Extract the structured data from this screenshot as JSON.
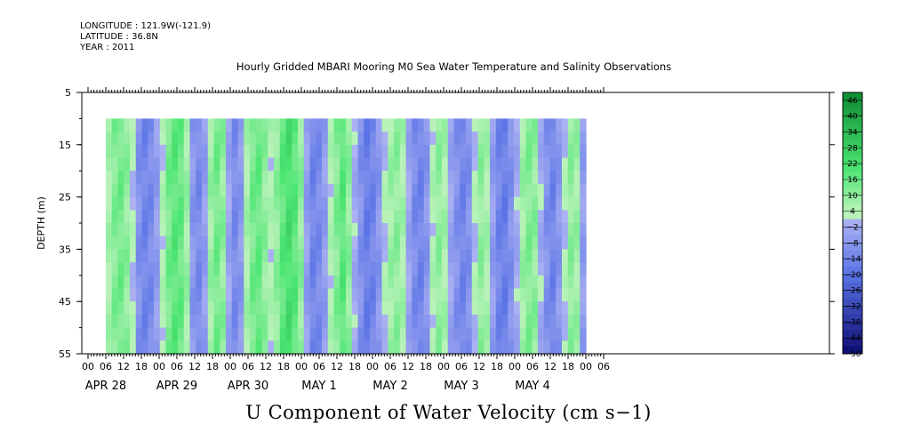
{
  "header": {
    "longitude": "LONGITUDE : 121.9W(-121.9)",
    "latitude": "LATITUDE : 36.8N",
    "year": "YEAR : 2011"
  },
  "chart_data": {
    "type": "heatmap",
    "title": "Hourly Gridded MBARI Mooring M0 Sea Water Temperature and Salinity Observations",
    "xlabel": "U Component of Water Velocity (cm s−1)",
    "ylabel": "DEPTH (m)",
    "ylim": [
      5,
      55
    ],
    "y_ticks": [
      "5",
      "15",
      "25",
      "35",
      "45",
      "55"
    ],
    "hour_ticks": [
      "00",
      "06",
      "12",
      "18"
    ],
    "date_labels": [
      "APR 28",
      "APR 29",
      "APR 30",
      "MAY  1",
      "MAY  2",
      "MAY  3",
      "MAY  4"
    ],
    "data_depth_range": [
      10,
      55
    ],
    "colorbar": {
      "tick_labels": [
        "46",
        "40",
        "34",
        "28",
        "22",
        "16",
        "10",
        "4",
        "−2",
        "−8",
        "−14",
        "−20",
        "−26",
        "−32",
        "−38",
        "−44",
        "−50"
      ],
      "range": [
        -50,
        49
      ]
    },
    "column_means_cm_s": [
      6,
      12,
      14,
      10,
      2,
      -10,
      -14,
      -12,
      -6,
      4,
      14,
      18,
      16,
      8,
      -8,
      -12,
      -6,
      8,
      14,
      10,
      -4,
      -12,
      -8,
      6,
      14,
      16,
      10,
      4,
      10,
      18,
      22,
      18,
      10,
      -6,
      -14,
      -12,
      -6,
      4,
      12,
      18,
      10,
      -2,
      -10,
      -16,
      -14,
      -8,
      2,
      8,
      10,
      6,
      -4,
      -12,
      -14,
      -8,
      4,
      10,
      6,
      -4,
      -10,
      -14,
      -10,
      2,
      10,
      6,
      -6,
      -14,
      -16,
      -10,
      -2,
      8,
      12,
      10,
      -2,
      -10,
      -14,
      -8,
      2,
      10,
      8,
      -6
    ]
  }
}
